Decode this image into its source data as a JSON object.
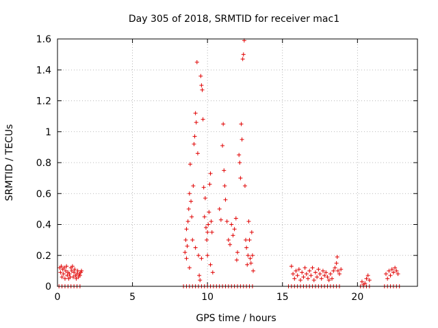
{
  "chart_data": {
    "type": "scatter",
    "title": "Day 305 of 2018, SRMTID for receiver mac1",
    "xlabel": "GPS time / hours",
    "ylabel": "SRMTID / TECUs",
    "xlim": [
      0,
      24
    ],
    "ylim": [
      0,
      1.6
    ],
    "xticks": [
      "0",
      "5",
      "10",
      "15",
      "20"
    ],
    "yticks": [
      "0",
      "0.2",
      "0.4",
      "0.6",
      "0.8",
      "1",
      "1.2",
      "1.4",
      "1.6"
    ],
    "grid": true,
    "marker": "plus",
    "color": "#e00000",
    "series": [
      {
        "name": "SRMTID",
        "points": [
          [
            0.15,
            0.12
          ],
          [
            0.2,
            0.09
          ],
          [
            0.25,
            0.13
          ],
          [
            0.3,
            0.06
          ],
          [
            0.35,
            0.11
          ],
          [
            0.4,
            0.08
          ],
          [
            0.45,
            0.12
          ],
          [
            0.5,
            0.05
          ],
          [
            0.55,
            0.1
          ],
          [
            0.6,
            0.13
          ],
          [
            0.65,
            0.07
          ],
          [
            0.7,
            0.09
          ],
          [
            0.75,
            0.05
          ],
          [
            0.8,
            0.08
          ],
          [
            0.85,
            0.06
          ],
          [
            0.9,
            0.12
          ],
          [
            0.95,
            0.1
          ],
          [
            1.0,
            0.13
          ],
          [
            1.05,
            0.06
          ],
          [
            1.1,
            0.09
          ],
          [
            1.15,
            0.11
          ],
          [
            1.2,
            0.07
          ],
          [
            1.25,
            0.05
          ],
          [
            1.3,
            0.08
          ],
          [
            1.35,
            0.1
          ],
          [
            1.4,
            0.06
          ],
          [
            1.45,
            0.08
          ],
          [
            1.5,
            0.07
          ],
          [
            1.55,
            0.09
          ],
          [
            1.6,
            0.1
          ],
          [
            8.5,
            0.22
          ],
          [
            8.55,
            0.3
          ],
          [
            8.6,
            0.37
          ],
          [
            8.65,
            0.26
          ],
          [
            8.7,
            0.42
          ],
          [
            8.75,
            0.5
          ],
          [
            8.8,
            0.6
          ],
          [
            8.85,
            0.79
          ],
          [
            8.9,
            0.55
          ],
          [
            8.95,
            0.45
          ],
          [
            9.0,
            0.3
          ],
          [
            9.05,
            0.65
          ],
          [
            9.1,
            0.92
          ],
          [
            9.15,
            0.97
          ],
          [
            9.2,
            1.12
          ],
          [
            9.25,
            1.06
          ],
          [
            9.3,
            1.45
          ],
          [
            9.35,
            0.86
          ],
          [
            9.4,
            0.2
          ],
          [
            9.45,
            0.07
          ],
          [
            9.5,
            0.04
          ],
          [
            9.55,
            1.36
          ],
          [
            9.6,
            1.3
          ],
          [
            9.65,
            1.27
          ],
          [
            9.7,
            1.08
          ],
          [
            9.75,
            0.64
          ],
          [
            9.8,
            0.45
          ],
          [
            9.85,
            0.57
          ],
          [
            9.9,
            0.38
          ],
          [
            9.95,
            0.3
          ],
          [
            10.0,
            0.35
          ],
          [
            10.05,
            0.4
          ],
          [
            10.1,
            0.48
          ],
          [
            10.15,
            0.66
          ],
          [
            10.2,
            0.73
          ],
          [
            10.25,
            0.42
          ],
          [
            10.3,
            0.35
          ],
          [
            10.35,
            0.09
          ],
          [
            8.6,
            0.18
          ],
          [
            8.8,
            0.12
          ],
          [
            9.2,
            0.25
          ],
          [
            9.6,
            0.18
          ],
          [
            10.0,
            0.2
          ],
          [
            10.2,
            0.14
          ],
          [
            10.8,
            0.5
          ],
          [
            10.9,
            0.43
          ],
          [
            11.0,
            0.91
          ],
          [
            11.05,
            1.05
          ],
          [
            11.1,
            0.75
          ],
          [
            11.15,
            0.65
          ],
          [
            11.2,
            0.56
          ],
          [
            11.3,
            0.42
          ],
          [
            11.4,
            0.3
          ],
          [
            11.5,
            0.27
          ],
          [
            11.6,
            0.4
          ],
          [
            11.7,
            0.33
          ],
          [
            11.8,
            0.37
          ],
          [
            11.9,
            0.44
          ],
          [
            11.95,
            0.17
          ],
          [
            12.0,
            0.22
          ],
          [
            12.1,
            0.85
          ],
          [
            12.15,
            0.8
          ],
          [
            12.2,
            0.7
          ],
          [
            12.25,
            1.05
          ],
          [
            12.3,
            0.95
          ],
          [
            12.35,
            1.47
          ],
          [
            12.4,
            1.5
          ],
          [
            12.45,
            1.59
          ],
          [
            12.5,
            0.65
          ],
          [
            12.55,
            0.3
          ],
          [
            12.6,
            0.25
          ],
          [
            12.65,
            0.14
          ],
          [
            12.7,
            0.2
          ],
          [
            12.75,
            0.42
          ],
          [
            12.8,
            0.3
          ],
          [
            12.85,
            0.18
          ],
          [
            12.9,
            0.15
          ],
          [
            12.95,
            0.35
          ],
          [
            13.0,
            0.2
          ],
          [
            13.05,
            0.1
          ],
          [
            15.6,
            0.13
          ],
          [
            15.7,
            0.08
          ],
          [
            15.8,
            0.05
          ],
          [
            15.9,
            0.1
          ],
          [
            16.0,
            0.07
          ],
          [
            16.1,
            0.11
          ],
          [
            16.2,
            0.04
          ],
          [
            16.3,
            0.09
          ],
          [
            16.4,
            0.06
          ],
          [
            16.5,
            0.12
          ],
          [
            16.6,
            0.08
          ],
          [
            16.7,
            0.05
          ],
          [
            16.8,
            0.1
          ],
          [
            16.9,
            0.07
          ],
          [
            17.0,
            0.12
          ],
          [
            17.1,
            0.04
          ],
          [
            17.2,
            0.09
          ],
          [
            17.3,
            0.06
          ],
          [
            17.4,
            0.11
          ],
          [
            17.5,
            0.08
          ],
          [
            17.6,
            0.05
          ],
          [
            17.7,
            0.1
          ],
          [
            17.8,
            0.07
          ],
          [
            17.9,
            0.09
          ],
          [
            18.0,
            0.06
          ],
          [
            18.1,
            0.04
          ],
          [
            18.2,
            0.08
          ],
          [
            18.3,
            0.05
          ],
          [
            18.4,
            0.1
          ],
          [
            18.5,
            0.12
          ],
          [
            18.6,
            0.15
          ],
          [
            18.65,
            0.19
          ],
          [
            18.7,
            0.1
          ],
          [
            18.8,
            0.08
          ],
          [
            18.9,
            0.11
          ],
          [
            20.3,
            0.03
          ],
          [
            20.4,
            0.01
          ],
          [
            20.5,
            0.02
          ],
          [
            20.6,
            0.05
          ],
          [
            20.7,
            0.07
          ],
          [
            20.8,
            0.04
          ],
          [
            21.9,
            0.08
          ],
          [
            22.0,
            0.05
          ],
          [
            22.1,
            0.1
          ],
          [
            22.2,
            0.07
          ],
          [
            22.3,
            0.11
          ],
          [
            22.4,
            0.09
          ],
          [
            22.5,
            0.12
          ],
          [
            22.6,
            0.1
          ],
          [
            22.7,
            0.08
          ],
          [
            0.1,
            0.0
          ],
          [
            0.3,
            0.0
          ],
          [
            0.5,
            0.0
          ],
          [
            0.7,
            0.0
          ],
          [
            0.9,
            0.0
          ],
          [
            1.1,
            0.0
          ],
          [
            1.3,
            0.0
          ],
          [
            1.5,
            0.0
          ],
          [
            8.4,
            0.0
          ],
          [
            8.6,
            0.0
          ],
          [
            8.8,
            0.0
          ],
          [
            9.0,
            0.0
          ],
          [
            9.2,
            0.0
          ],
          [
            9.4,
            0.0
          ],
          [
            9.6,
            0.0
          ],
          [
            9.8,
            0.0
          ],
          [
            10.0,
            0.0
          ],
          [
            10.2,
            0.0
          ],
          [
            10.4,
            0.0
          ],
          [
            10.6,
            0.0
          ],
          [
            10.8,
            0.0
          ],
          [
            11.0,
            0.0
          ],
          [
            11.2,
            0.0
          ],
          [
            11.4,
            0.0
          ],
          [
            11.6,
            0.0
          ],
          [
            11.8,
            0.0
          ],
          [
            12.0,
            0.0
          ],
          [
            12.2,
            0.0
          ],
          [
            12.4,
            0.0
          ],
          [
            12.6,
            0.0
          ],
          [
            12.8,
            0.0
          ],
          [
            13.0,
            0.0
          ],
          [
            15.4,
            0.0
          ],
          [
            15.6,
            0.0
          ],
          [
            15.8,
            0.0
          ],
          [
            16.0,
            0.0
          ],
          [
            16.2,
            0.0
          ],
          [
            16.4,
            0.0
          ],
          [
            16.6,
            0.0
          ],
          [
            16.8,
            0.0
          ],
          [
            17.0,
            0.0
          ],
          [
            17.2,
            0.0
          ],
          [
            17.4,
            0.0
          ],
          [
            17.6,
            0.0
          ],
          [
            17.8,
            0.0
          ],
          [
            18.0,
            0.0
          ],
          [
            18.2,
            0.0
          ],
          [
            18.4,
            0.0
          ],
          [
            18.6,
            0.0
          ],
          [
            18.8,
            0.0
          ],
          [
            20.2,
            0.0
          ],
          [
            20.4,
            0.0
          ],
          [
            20.6,
            0.0
          ],
          [
            20.8,
            0.0
          ],
          [
            21.8,
            0.0
          ],
          [
            22.0,
            0.0
          ],
          [
            22.2,
            0.0
          ],
          [
            22.4,
            0.0
          ],
          [
            22.6,
            0.0
          ],
          [
            22.8,
            0.0
          ]
        ]
      }
    ]
  }
}
